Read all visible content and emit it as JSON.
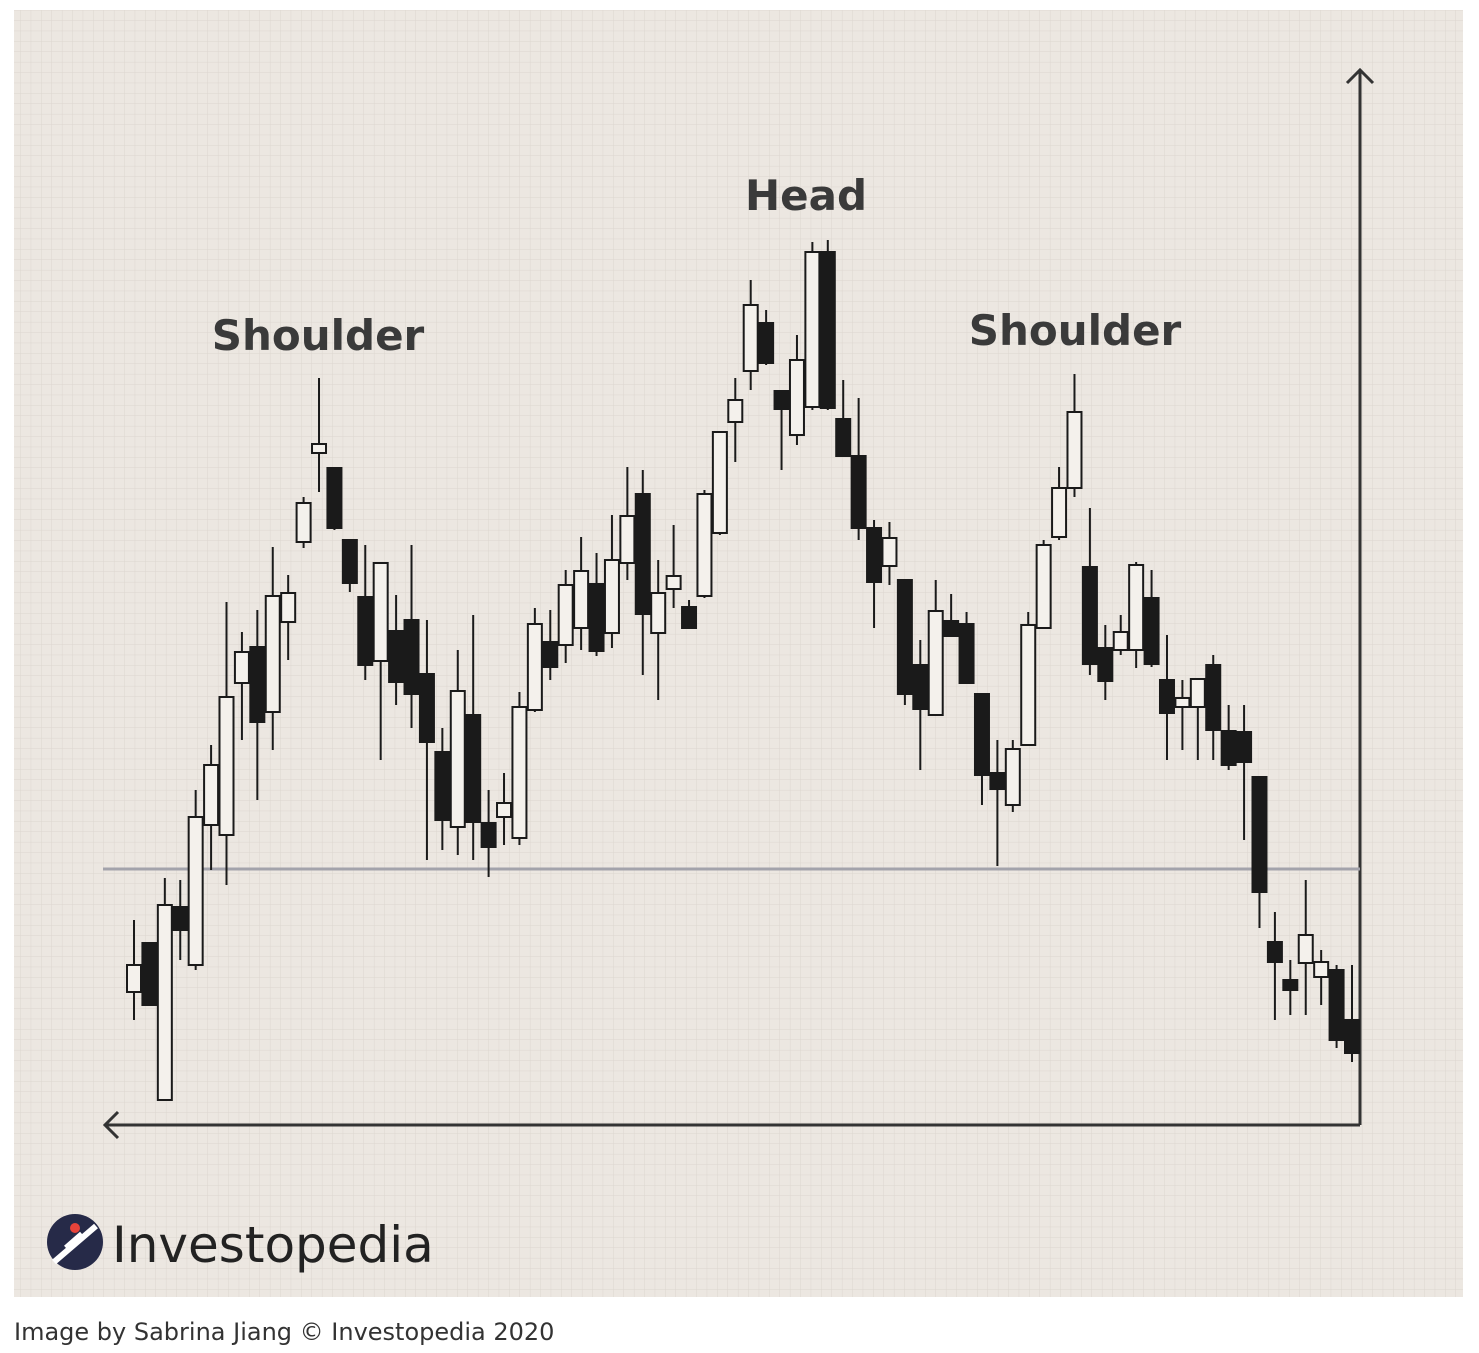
{
  "chart_data": {
    "type": "candlestick",
    "annotations": [
      "Shoulder",
      "Head",
      "Shoulder"
    ],
    "ylim": [
      0,
      105
    ],
    "neckline": 25.6,
    "up_color": "#f4f1ec",
    "down_color": "#1a1a1a",
    "open": [
      13.3,
      18.2,
      2.5,
      21.8,
      16,
      30,
      29,
      44.2,
      47.8,
      41.3,
      50.3,
      58.3,
      67.2,
      65.7,
      58.5,
      52.8,
      46.4,
      49.4,
      50.5,
      45.1,
      37.3,
      29.8,
      41,
      30.2,
      30.8,
      28.7,
      41.5,
      48.3,
      48,
      49.7,
      54.1,
      49.2,
      56.2,
      63.1,
      49.2,
      53.6,
      51.8,
      52.9,
      59.2,
      70.3,
      75.4,
      80.2,
      73.4,
      69,
      71.8,
      87.3,
      70.6,
      66.9,
      59.7,
      55.9,
      54.5,
      46,
      41,
      50.4,
      50.1,
      43.1,
      35.2,
      32,
      38,
      49.7,
      58.8,
      63.7,
      55.8,
      47.7,
      47.5,
      47.5,
      52.7,
      44.5,
      41.8,
      41.8,
      46,
      39.4,
      39.3,
      34.8,
      18.3,
      14.5,
      16.2,
      14.8,
      15.5,
      10.5
    ],
    "high": [
      20.5,
      18.2,
      24.7,
      24.5,
      33.5,
      38,
      52.3,
      49.3,
      51.5,
      57.8,
      55,
      62.8,
      74.7,
      65.7,
      58.5,
      58,
      56.2,
      53,
      58,
      50.5,
      39.7,
      47.5,
      51,
      33.5,
      35.2,
      43.3,
      51.7,
      51.5,
      55.5,
      58.8,
      57.2,
      61,
      65.8,
      65.5,
      56.5,
      60,
      52.5,
      63.5,
      69.3,
      74.7,
      84.5,
      81.5,
      73.5,
      79,
      88.3,
      88.5,
      74.5,
      72.7,
      60.5,
      60.3,
      54.5,
      48.5,
      54.5,
      53.1,
      51.3,
      43.1,
      38.5,
      38.5,
      51.3,
      58.5,
      65.8,
      75.1,
      61.7,
      50,
      51,
      56.3,
      55.5,
      49,
      44.5,
      44.7,
      47,
      42,
      42,
      34.8,
      21.3,
      16.5,
      24.5,
      17.5,
      16,
      16
    ],
    "low": [
      10.5,
      12,
      2.5,
      16.5,
      15.5,
      25.5,
      24,
      38.5,
      32.5,
      37.5,
      46.5,
      57.7,
      63.3,
      59.5,
      53.3,
      44.5,
      36.5,
      42,
      39.7,
      26.5,
      27.5,
      27,
      26.5,
      24.8,
      28,
      28,
      41.3,
      44.5,
      46.2,
      47.5,
      46.9,
      47.7,
      54.5,
      45,
      42.5,
      51.7,
      49.7,
      52.7,
      59,
      66.3,
      73.5,
      76,
      65.5,
      68,
      71.5,
      71.5,
      66.8,
      58.5,
      49.7,
      54,
      42,
      35.5,
      40.9,
      48.8,
      44.1,
      32,
      25.9,
      31.3,
      38,
      49.7,
      58.5,
      62.8,
      45,
      42.5,
      47,
      45.7,
      45.8,
      36.5,
      37.5,
      36.5,
      36.5,
      35.5,
      28.5,
      19.7,
      10.5,
      11,
      11,
      12,
      7.7,
      6.3
    ],
    "close": [
      16,
      12,
      22,
      19.5,
      30.8,
      36,
      42.8,
      47.3,
      40.3,
      52.9,
      53.2,
      62.2,
      68.1,
      59.7,
      54.2,
      46,
      56.2,
      44.3,
      43.1,
      38.3,
      30.5,
      43.4,
      30.3,
      27.8,
      32.2,
      41.8,
      50.1,
      45.8,
      54,
      55.4,
      47.4,
      56.5,
      60.9,
      51.1,
      53.2,
      54.9,
      49.7,
      63.1,
      69.3,
      72.5,
      82,
      76.2,
      71.6,
      76.5,
      87.3,
      71.7,
      66.9,
      59.7,
      54.3,
      58.7,
      43.1,
      41.6,
      51.4,
      48.9,
      44.2,
      35,
      33.6,
      37.6,
      50,
      58,
      63.7,
      71.3,
      46.1,
      44.4,
      49.3,
      56,
      46.1,
      41.2,
      42.7,
      44.6,
      39.5,
      36,
      36.3,
      23.3,
      16.3,
      13.5,
      19,
      16.3,
      8.5,
      7.2
    ]
  },
  "logo": "Investopedia",
  "caption": "Image by Sabrina Jiang © Investopedia 2020"
}
